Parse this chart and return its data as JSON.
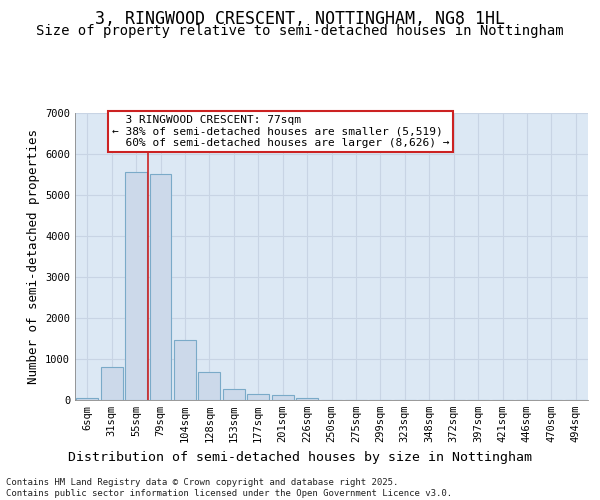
{
  "title": "3, RINGWOOD CRESCENT, NOTTINGHAM, NG8 1HL",
  "subtitle": "Size of property relative to semi-detached houses in Nottingham",
  "xlabel": "Distribution of semi-detached houses by size in Nottingham",
  "ylabel": "Number of semi-detached properties",
  "categories": [
    "6sqm",
    "31sqm",
    "55sqm",
    "79sqm",
    "104sqm",
    "128sqm",
    "153sqm",
    "177sqm",
    "201sqm",
    "226sqm",
    "250sqm",
    "275sqm",
    "299sqm",
    "323sqm",
    "348sqm",
    "372sqm",
    "397sqm",
    "421sqm",
    "446sqm",
    "470sqm",
    "494sqm"
  ],
  "values": [
    50,
    800,
    5550,
    5500,
    1470,
    680,
    280,
    140,
    110,
    60,
    0,
    0,
    0,
    0,
    0,
    0,
    0,
    0,
    0,
    0,
    0
  ],
  "property_label": "3 RINGWOOD CRESCENT: 77sqm",
  "pct_smaller": 38,
  "pct_larger": 60,
  "count_smaller": 5519,
  "count_larger": 8626,
  "bar_color": "#ccd9ea",
  "bar_edge_color": "#7aaac8",
  "highlight_line_color": "#cc2222",
  "annotation_box_edge": "#cc2222",
  "grid_color": "#c8d4e4",
  "bg_color": "#dce8f4",
  "footer_text": "Contains HM Land Registry data © Crown copyright and database right 2025.\nContains public sector information licensed under the Open Government Licence v3.0.",
  "ylim": [
    0,
    7000
  ],
  "yticks": [
    0,
    1000,
    2000,
    3000,
    4000,
    5000,
    6000,
    7000
  ],
  "title_fontsize": 12,
  "subtitle_fontsize": 10,
  "axis_label_fontsize": 9,
  "tick_fontsize": 7.5,
  "annotation_fontsize": 8,
  "footer_fontsize": 6.5,
  "property_line_x": 2.5
}
